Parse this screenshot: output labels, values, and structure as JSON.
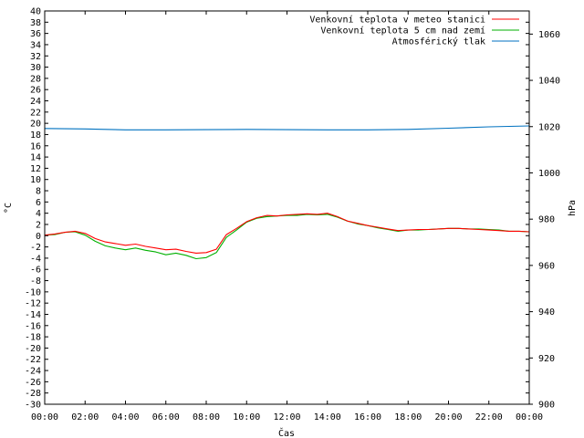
{
  "chart_data": {
    "type": "line",
    "xlabel": "Čas",
    "ylabel_left": "°C",
    "ylabel_right": "hPa",
    "x_ticks": [
      "00:00",
      "02:00",
      "04:00",
      "06:00",
      "08:00",
      "10:00",
      "12:00",
      "14:00",
      "16:00",
      "18:00",
      "20:00",
      "22:00",
      "00:00"
    ],
    "x_range_hours": [
      0,
      24
    ],
    "ylim_left": [
      -30,
      40
    ],
    "ytick_step_left": 2,
    "ylim_right": [
      900,
      1070
    ],
    "yticks_right": [
      900,
      920,
      940,
      960,
      980,
      1000,
      1020,
      1040,
      1060
    ],
    "legend_position": "top-right",
    "series": [
      {
        "name": "Venkovní teplota v meteo stanici",
        "color": "#ff0000",
        "axis": "left",
        "x": [
          0,
          0.5,
          1,
          1.5,
          2,
          2.5,
          3,
          3.5,
          4,
          4.5,
          5,
          5.5,
          6,
          6.5,
          7,
          7.5,
          8,
          8.5,
          9,
          9.5,
          10,
          10.5,
          11,
          11.5,
          12,
          12.5,
          13,
          13.5,
          14,
          14.5,
          15,
          15.5,
          16,
          16.5,
          17,
          17.5,
          18,
          18.5,
          19,
          19.5,
          20,
          20.5,
          21,
          21.5,
          22,
          22.5,
          23,
          23.5,
          24
        ],
        "values": [
          0.1,
          0.3,
          0.6,
          0.8,
          0.4,
          -0.5,
          -1.1,
          -1.4,
          -1.7,
          -1.5,
          -1.9,
          -2.2,
          -2.5,
          -2.4,
          -2.8,
          -3.1,
          -3.0,
          -2.4,
          0.2,
          1.3,
          2.5,
          3.2,
          3.6,
          3.5,
          3.7,
          3.8,
          3.9,
          3.8,
          4.0,
          3.4,
          2.6,
          2.2,
          1.8,
          1.5,
          1.2,
          0.9,
          1.0,
          1.1,
          1.1,
          1.2,
          1.3,
          1.3,
          1.2,
          1.1,
          1.0,
          0.9,
          0.8,
          0.8,
          0.7
        ]
      },
      {
        "name": "Venkovní teplota 5 cm nad zemí",
        "color": "#00b000",
        "axis": "left",
        "x": [
          0,
          0.5,
          1,
          1.5,
          2,
          2.5,
          3,
          3.5,
          4,
          4.5,
          5,
          5.5,
          6,
          6.5,
          7,
          7.5,
          8,
          8.5,
          9,
          9.5,
          10,
          10.5,
          11,
          11.5,
          12,
          12.5,
          13,
          13.5,
          14,
          14.5,
          15,
          15.5,
          16,
          16.5,
          17,
          17.5,
          18,
          18.5,
          19,
          19.5,
          20,
          20.5,
          21,
          21.5,
          22,
          22.5,
          23,
          23.5,
          24
        ],
        "values": [
          0.1,
          0.2,
          0.6,
          0.7,
          0.1,
          -1.0,
          -1.8,
          -2.2,
          -2.5,
          -2.2,
          -2.6,
          -2.9,
          -3.4,
          -3.1,
          -3.5,
          -4.1,
          -3.9,
          -3.0,
          -0.3,
          1.0,
          2.4,
          3.1,
          3.4,
          3.5,
          3.6,
          3.6,
          3.8,
          3.7,
          3.8,
          3.3,
          2.6,
          2.1,
          1.8,
          1.4,
          1.1,
          0.8,
          1.0,
          1.0,
          1.1,
          1.2,
          1.3,
          1.3,
          1.2,
          1.2,
          1.1,
          1.0,
          0.8,
          0.8,
          0.7
        ]
      },
      {
        "name": "Atmosférický tlak",
        "color": "#0072c0",
        "axis": "right",
        "x": [
          0,
          2,
          4,
          6,
          8,
          10,
          12,
          14,
          16,
          18,
          20,
          22,
          24
        ],
        "values": [
          1019.2,
          1019.0,
          1018.6,
          1018.6,
          1018.7,
          1018.8,
          1018.7,
          1018.6,
          1018.6,
          1018.8,
          1019.3,
          1019.9,
          1020.3
        ]
      }
    ]
  }
}
